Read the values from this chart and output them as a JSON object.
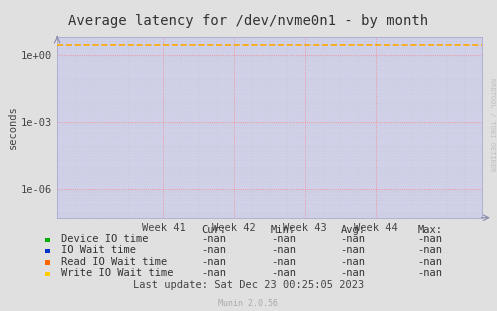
{
  "title": "Average latency for /dev/nvme0n1 - by month",
  "ylabel": "seconds",
  "background_color": "#e0e0e0",
  "plot_bg_color": "#d0d0e8",
  "grid_major_color": "#ff8080",
  "grid_minor_color": "#c8c8d8",
  "x_ticks": [
    41,
    42,
    43,
    44
  ],
  "x_tick_labels": [
    "Week 41",
    "Week 42",
    "Week 43",
    "Week 44"
  ],
  "x_min": 39.5,
  "x_max": 45.5,
  "y_min": 5e-08,
  "y_max": 6.0,
  "dashed_line_y": 2.8,
  "dashed_line_color": "#ffaa00",
  "watermark": "RRDTOOL / TOBI OETIKER",
  "munin_version": "Munin 2.0.56",
  "last_update": "Last update: Sat Dec 23 00:25:05 2023",
  "legend_items": [
    {
      "label": "Device IO time",
      "color": "#00aa00"
    },
    {
      "label": "IO Wait time",
      "color": "#0033cc"
    },
    {
      "label": "Read IO Wait time",
      "color": "#ff6600"
    },
    {
      "label": "Write IO Wait time",
      "color": "#ffcc00"
    }
  ],
  "legend_cols": [
    "Cur:",
    "Min:",
    "Avg:",
    "Max:"
  ],
  "legend_values": [
    "-nan",
    "-nan",
    "-nan",
    "-nan"
  ],
  "title_fontsize": 10,
  "axis_fontsize": 7.5,
  "legend_fontsize": 7.5
}
